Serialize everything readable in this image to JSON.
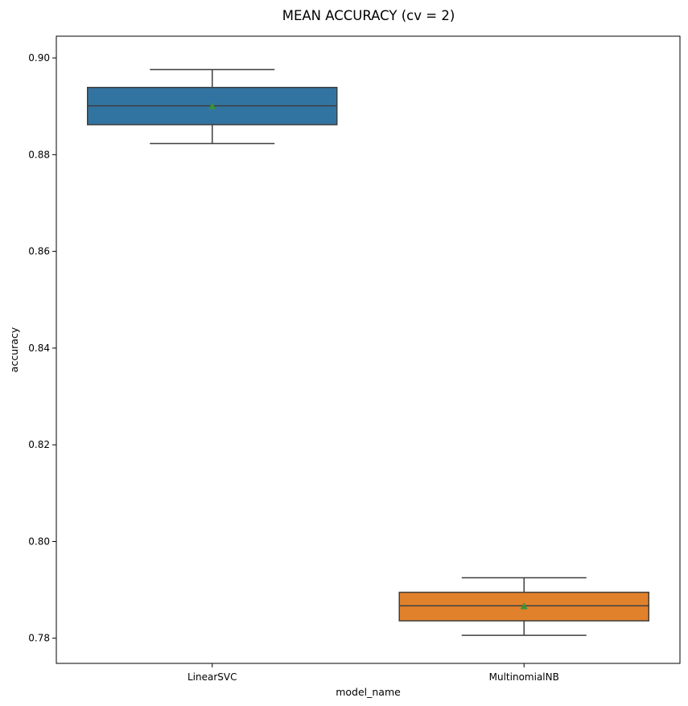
{
  "chart_data": {
    "type": "box",
    "title": "MEAN ACCURACY (cv = 2)",
    "xlabel": "model_name",
    "ylabel": "accuracy",
    "ylim": [
      0.7748,
      0.9045
    ],
    "yticks": [
      0.78,
      0.8,
      0.82,
      0.84,
      0.86,
      0.88,
      0.9
    ],
    "ytick_labels": [
      "0.78",
      "0.80",
      "0.82",
      "0.84",
      "0.86",
      "0.88",
      "0.90"
    ],
    "grid": false,
    "categories": [
      "LinearSVC",
      "MultinomialNB"
    ],
    "boxes": [
      {
        "category": "LinearSVC",
        "color": "#3274a1",
        "whisker_low": 0.8823,
        "q1": 0.8862,
        "median": 0.8901,
        "q3": 0.8939,
        "whisker_high": 0.8976,
        "mean": 0.89
      },
      {
        "category": "MultinomialNB",
        "color": "#e1812c",
        "whisker_low": 0.7806,
        "q1": 0.7836,
        "median": 0.7867,
        "q3": 0.7895,
        "whisker_high": 0.7925,
        "mean": 0.7866
      }
    ],
    "mean_marker_color": "#3a923a",
    "line_color": "#3f3f3f"
  }
}
